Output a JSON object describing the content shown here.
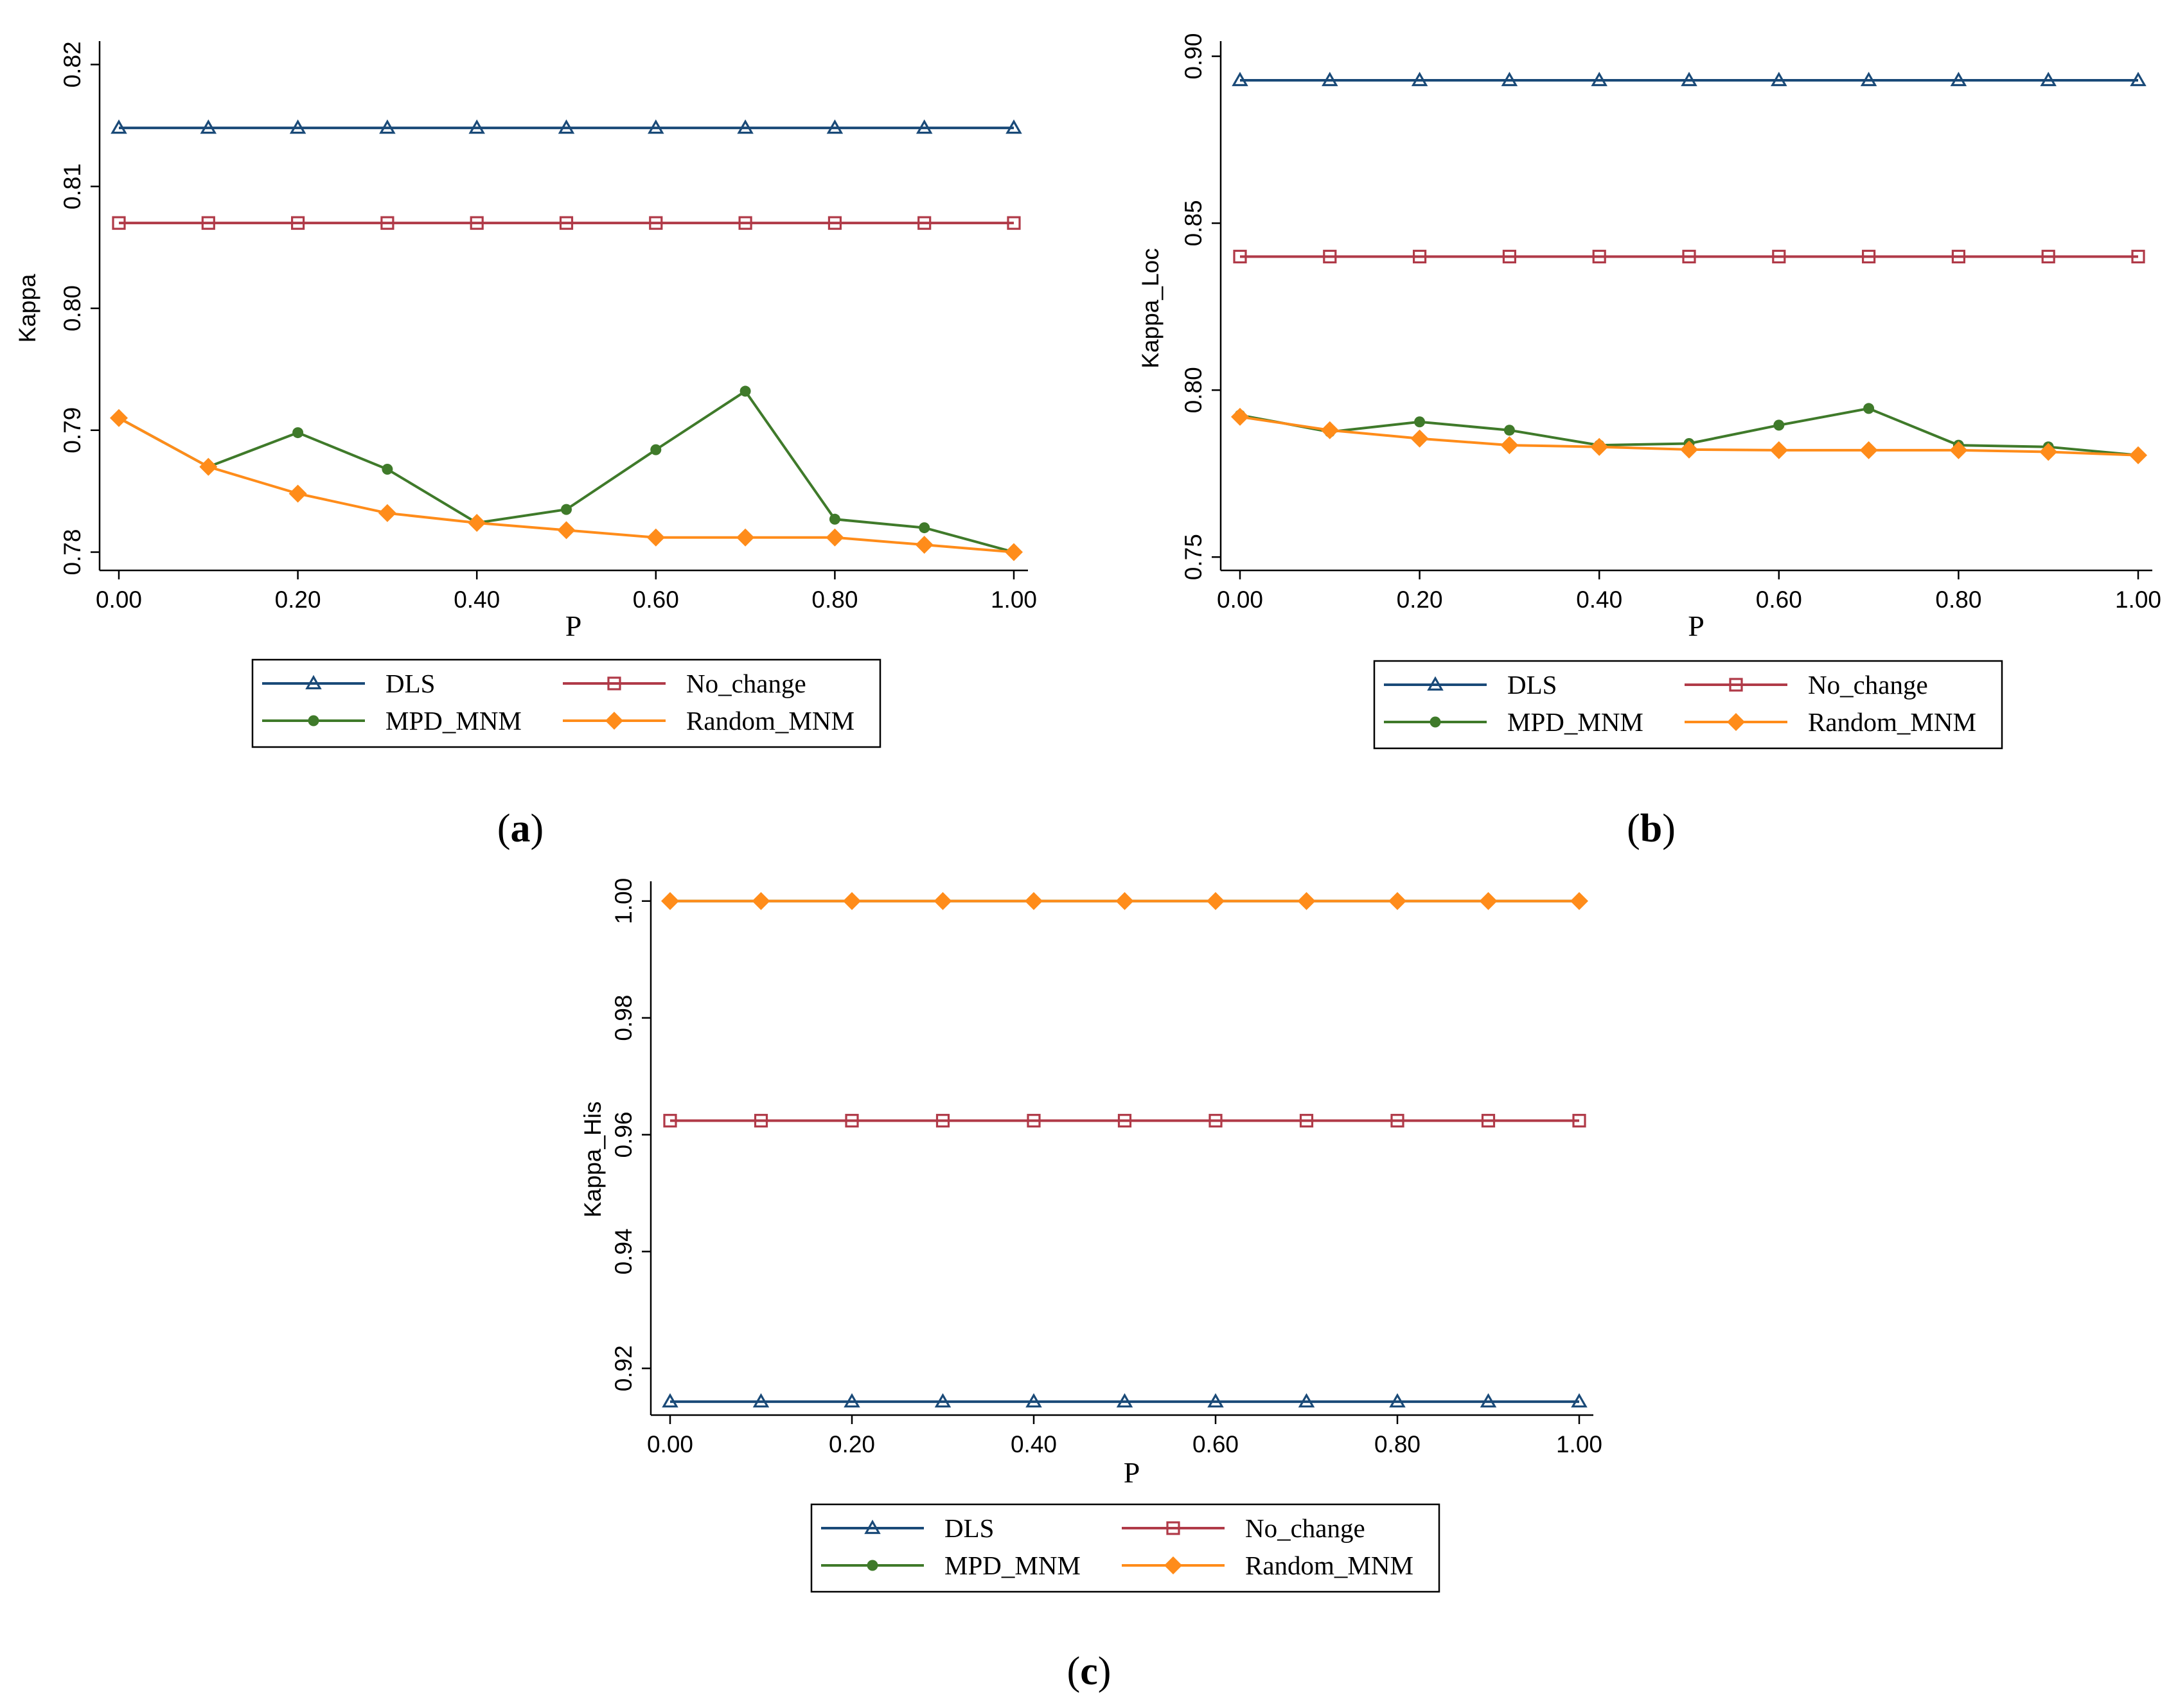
{
  "figure": {
    "colors": {
      "DLS": "#1a4a78",
      "No_change": "#b03a48",
      "MPD_MNM": "#3f7a2a",
      "Random_MNM": "#ff8c1a",
      "axis": "#000000"
    }
  },
  "chart_data": [
    {
      "id": "a",
      "type": "line",
      "caption": "(a)",
      "caption_letter": "a",
      "xlabel": "P",
      "ylabel": "Kappa",
      "xlim": [
        0,
        1
      ],
      "ylim": [
        0.7785,
        0.8215
      ],
      "xticks": [
        0,
        0.2,
        0.4,
        0.6,
        0.8,
        1.0
      ],
      "xtick_labels": [
        "0.00",
        "0.20",
        "0.40",
        "0.60",
        "0.80",
        "1.00"
      ],
      "yticks": [
        0.78,
        0.79,
        0.8,
        0.81,
        0.82
      ],
      "ytick_labels": [
        "0.78",
        "0.79",
        "0.80",
        "0.81",
        "0.82"
      ],
      "x": [
        0,
        0.1,
        0.2,
        0.3,
        0.4,
        0.5,
        0.6,
        0.7,
        0.8,
        0.9,
        1.0
      ],
      "series": [
        {
          "name": "DLS",
          "marker": "triangle",
          "values": [
            0.8148,
            0.8148,
            0.8148,
            0.8148,
            0.8148,
            0.8148,
            0.8148,
            0.8148,
            0.8148,
            0.8148,
            0.8148
          ]
        },
        {
          "name": "No_change",
          "marker": "square",
          "values": [
            0.807,
            0.807,
            0.807,
            0.807,
            0.807,
            0.807,
            0.807,
            0.807,
            0.807,
            0.807,
            0.807
          ]
        },
        {
          "name": "MPD_MNM",
          "marker": "dot",
          "values": [
            0.791,
            0.787,
            0.7898,
            0.7868,
            0.7824,
            0.7835,
            0.7884,
            0.7932,
            0.7827,
            0.782,
            0.78
          ]
        },
        {
          "name": "Random_MNM",
          "marker": "diamond",
          "values": [
            0.791,
            0.787,
            0.7848,
            0.7832,
            0.7824,
            0.7818,
            0.7812,
            0.7812,
            0.7812,
            0.7806,
            0.78
          ]
        }
      ],
      "legend": [
        {
          "label": "DLS"
        },
        {
          "label": "No_change"
        },
        {
          "label": "MPD_MNM"
        },
        {
          "label": "Random_MNM"
        }
      ]
    },
    {
      "id": "b",
      "type": "line",
      "caption": "(b)",
      "caption_letter": "b",
      "xlabel": "P",
      "ylabel": "Kappa_Loc",
      "xlim": [
        0,
        1
      ],
      "ylim": [
        0.746,
        0.903
      ],
      "xticks": [
        0,
        0.2,
        0.4,
        0.6,
        0.8,
        1.0
      ],
      "xtick_labels": [
        "0.00",
        "0.20",
        "0.40",
        "0.60",
        "0.80",
        "1.00"
      ],
      "yticks": [
        0.75,
        0.8,
        0.85,
        0.9
      ],
      "ytick_labels": [
        "0.75",
        "0.80",
        "0.85",
        "0.90"
      ],
      "x": [
        0,
        0.1,
        0.2,
        0.3,
        0.4,
        0.5,
        0.6,
        0.7,
        0.8,
        0.9,
        1.0
      ],
      "series": [
        {
          "name": "DLS",
          "marker": "triangle",
          "values": [
            0.8928,
            0.8928,
            0.8928,
            0.8928,
            0.8928,
            0.8928,
            0.8928,
            0.8928,
            0.8928,
            0.8928,
            0.8928
          ]
        },
        {
          "name": "No_change",
          "marker": "square",
          "values": [
            0.84,
            0.84,
            0.84,
            0.84,
            0.84,
            0.84,
            0.84,
            0.84,
            0.84,
            0.84,
            0.84
          ]
        },
        {
          "name": "MPD_MNM",
          "marker": "dot",
          "values": [
            0.7925,
            0.7875,
            0.7905,
            0.788,
            0.7835,
            0.784,
            0.7895,
            0.7945,
            0.7835,
            0.783,
            0.7805
          ]
        },
        {
          "name": "Random_MNM",
          "marker": "diamond",
          "values": [
            0.792,
            0.788,
            0.7855,
            0.7835,
            0.783,
            0.7822,
            0.782,
            0.782,
            0.782,
            0.7815,
            0.7805
          ]
        }
      ],
      "legend": [
        {
          "label": "DLS"
        },
        {
          "label": "No_change"
        },
        {
          "label": "MPD_MNM"
        },
        {
          "label": "Random_MNM"
        }
      ]
    },
    {
      "id": "c",
      "type": "line",
      "caption": "(c)",
      "caption_letter": "c",
      "xlabel": "P",
      "ylabel": "Kappa_His",
      "xlim": [
        0,
        1
      ],
      "ylim": [
        0.912,
        1.0025
      ],
      "xticks": [
        0,
        0.2,
        0.4,
        0.6,
        0.8,
        1.0
      ],
      "xtick_labels": [
        "0.00",
        "0.20",
        "0.40",
        "0.60",
        "0.80",
        "1.00"
      ],
      "yticks": [
        0.92,
        0.94,
        0.96,
        0.98,
        1.0
      ],
      "ytick_labels": [
        "0.92",
        "0.94",
        "0.96",
        "0.98",
        "1.00"
      ],
      "x": [
        0,
        0.1,
        0.2,
        0.3,
        0.4,
        0.5,
        0.6,
        0.7,
        0.8,
        0.9,
        1.0
      ],
      "series": [
        {
          "name": "DLS",
          "marker": "triangle",
          "values": [
            0.9143,
            0.9143,
            0.9143,
            0.9143,
            0.9143,
            0.9143,
            0.9143,
            0.9143,
            0.9143,
            0.9143,
            0.9143
          ]
        },
        {
          "name": "No_change",
          "marker": "square",
          "values": [
            0.9624,
            0.9624,
            0.9624,
            0.9624,
            0.9624,
            0.9624,
            0.9624,
            0.9624,
            0.9624,
            0.9624,
            0.9624
          ]
        },
        {
          "name": "MPD_MNM",
          "marker": "dot",
          "values": [
            1.0,
            1.0,
            1.0,
            1.0,
            1.0,
            1.0,
            1.0,
            1.0,
            1.0,
            1.0,
            1.0
          ]
        },
        {
          "name": "Random_MNM",
          "marker": "diamond",
          "values": [
            1.0,
            1.0,
            1.0,
            1.0,
            1.0,
            1.0,
            1.0,
            1.0,
            1.0,
            1.0,
            1.0
          ]
        }
      ],
      "legend": [
        {
          "label": "DLS"
        },
        {
          "label": "No_change"
        },
        {
          "label": "MPD_MNM"
        },
        {
          "label": "Random_MNM"
        }
      ]
    }
  ]
}
